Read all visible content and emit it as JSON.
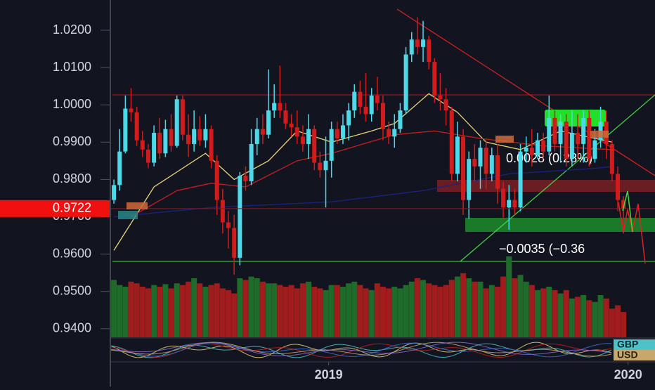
{
  "chart_data": {
    "type": "candlestick",
    "ylim": [
      0.9377,
      1.0281
    ],
    "yticks": [
      {
        "value": 1.02,
        "label": "1.0200"
      },
      {
        "value": 1.01,
        "label": "1.0100"
      },
      {
        "value": 1.0,
        "label": "1.0000"
      },
      {
        "value": 0.99,
        "label": "0.9900"
      },
      {
        "value": 0.98,
        "label": "0.9800"
      },
      {
        "value": 0.97,
        "label": "0.9700"
      },
      {
        "value": 0.96,
        "label": "0.9600"
      },
      {
        "value": 0.95,
        "label": "0.9500"
      },
      {
        "value": 0.94,
        "label": "0.9400"
      }
    ],
    "xlim": [
      -0.5,
      94.5
    ],
    "xticks": [
      {
        "value": 37.5,
        "label": "2019"
      },
      {
        "value": 89.8,
        "label": "2020"
      }
    ],
    "up_color": "#4dd9e8",
    "down_color": "#d01c1c",
    "volume_up_color": "#1e6b2a",
    "volume_down_color": "#a11d1d",
    "last_price": 0.9722,
    "last_price_color": "#f01010",
    "annotations": [
      "0.0028 (0.28%)",
      "−0.0035 (−0.36"
    ],
    "tags": [
      "GBP",
      "USD"
    ],
    "candles": [
      [
        0.9745,
        0.98,
        0.9735,
        0.9785
      ],
      [
        0.9785,
        0.9935,
        0.977,
        0.9875
      ],
      [
        0.9875,
        1.0025,
        0.987,
        0.999
      ],
      [
        0.999,
        1.0045,
        0.9955,
        0.998
      ],
      [
        0.998,
        0.9995,
        0.989,
        0.9905
      ],
      [
        0.9905,
        0.993,
        0.986,
        0.988
      ],
      [
        0.988,
        0.9895,
        0.983,
        0.9845
      ],
      [
        0.9845,
        0.9945,
        0.9835,
        0.9925
      ],
      [
        0.9925,
        0.9965,
        0.9855,
        0.987
      ],
      [
        0.987,
        0.996,
        0.986,
        0.9935
      ],
      [
        0.9935,
        0.9975,
        0.9875,
        0.989
      ],
      [
        0.989,
        1.0025,
        0.9885,
        1.0015
      ],
      [
        1.0015,
        1.0025,
        0.9905,
        0.992
      ],
      [
        0.992,
        0.9975,
        0.986,
        0.9895
      ],
      [
        0.9895,
        0.9985,
        0.9875,
        0.9935
      ],
      [
        0.9935,
        0.997,
        0.989,
        0.9905
      ],
      [
        0.9905,
        0.9975,
        0.9885,
        0.9935
      ],
      [
        0.9935,
        0.9945,
        0.983,
        0.985
      ],
      [
        0.985,
        0.9865,
        0.9705,
        0.9745
      ],
      [
        0.9745,
        0.9775,
        0.9655,
        0.9685
      ],
      [
        0.9685,
        0.9715,
        0.9615,
        0.967
      ],
      [
        0.967,
        0.9705,
        0.9545,
        0.959
      ],
      [
        0.959,
        0.982,
        0.957,
        0.981
      ],
      [
        0.981,
        0.9835,
        0.977,
        0.9795
      ],
      [
        0.9795,
        0.9935,
        0.9785,
        0.9895
      ],
      [
        0.9895,
        0.9965,
        0.9865,
        0.9935
      ],
      [
        0.9935,
        0.9975,
        0.9895,
        0.992
      ],
      [
        0.992,
        1.0095,
        0.991,
        0.9985
      ],
      [
        0.9985,
        1.0055,
        0.9965,
        1.0005
      ],
      [
        1.0005,
        1.0105,
        0.9965,
        0.9985
      ],
      [
        0.9985,
        1.0005,
        0.9935,
        0.995
      ],
      [
        0.995,
        0.9975,
        0.9915,
        0.994
      ],
      [
        0.994,
        0.9985,
        0.9895,
        0.9915
      ],
      [
        0.9915,
        0.9945,
        0.9875,
        0.9895
      ],
      [
        0.9895,
        0.9975,
        0.9855,
        0.9935
      ],
      [
        0.9935,
        0.9945,
        0.9825,
        0.9845
      ],
      [
        0.9845,
        0.9875,
        0.9805,
        0.9825
      ],
      [
        0.9825,
        0.9915,
        0.9725,
        0.985
      ],
      [
        0.985,
        0.9955,
        0.9805,
        0.9935
      ],
      [
        0.9935,
        0.9955,
        0.9895,
        0.991
      ],
      [
        0.991,
        0.9975,
        0.9895,
        0.9945
      ],
      [
        0.9945,
        1.0005,
        0.9905,
        0.9985
      ],
      [
        0.9985,
        1.0055,
        0.9965,
        1.0035
      ],
      [
        1.0035,
        1.0065,
        0.9975,
        0.9995
      ],
      [
        0.9995,
        1.0085,
        0.9955,
        0.9975
      ],
      [
        0.9975,
        1.0045,
        0.9955,
        1.0025
      ],
      [
        1.0025,
        1.0075,
        0.9985,
        1.0005
      ],
      [
        1.0005,
        1.0025,
        0.9905,
        0.9935
      ],
      [
        0.9935,
        0.9955,
        0.9895,
        0.9915
      ],
      [
        0.9915,
        0.9975,
        0.9885,
        0.9935
      ],
      [
        0.9935,
        1.0005,
        0.9925,
        0.9985
      ],
      [
        0.9985,
        1.0155,
        0.9975,
        1.0135
      ],
      [
        1.0135,
        1.0195,
        1.0115,
        1.0175
      ],
      [
        1.0175,
        1.0235,
        1.0135,
        1.0155
      ],
      [
        1.0155,
        1.0225,
        1.0115,
        1.0175
      ],
      [
        1.0175,
        1.0185,
        1.0095,
        1.0115
      ],
      [
        1.0115,
        1.0125,
        1.0005,
        1.0025
      ],
      [
        1.0025,
        1.0085,
        0.9985,
        1.0015
      ],
      [
        1.0015,
        1.0045,
        0.9945,
        0.9985
      ],
      [
        0.9985,
        0.9995,
        0.9795,
        0.9815
      ],
      [
        0.9815,
        0.9955,
        0.9795,
        0.9915
      ],
      [
        0.9915,
        0.9935,
        0.9705,
        0.9745
      ],
      [
        0.9745,
        0.9875,
        0.9695,
        0.9855
      ],
      [
        0.9855,
        0.9895,
        0.9795,
        0.9835
      ],
      [
        0.9835,
        0.9905,
        0.9775,
        0.9885
      ],
      [
        0.9885,
        0.9905,
        0.9775,
        0.9815
      ],
      [
        0.9815,
        0.9885,
        0.9795,
        0.9865
      ],
      [
        0.9865,
        0.9895,
        0.9735,
        0.9775
      ],
      [
        0.9775,
        0.9795,
        0.9695,
        0.9725
      ],
      [
        0.9725,
        0.9785,
        0.9665,
        0.9745
      ],
      [
        0.9745,
        0.9775,
        0.9705,
        0.9725
      ],
      [
        0.9725,
        0.9895,
        0.9715,
        0.9875
      ],
      [
        0.9875,
        0.9915,
        0.9845,
        0.9885
      ],
      [
        0.9885,
        0.9935,
        0.9835,
        0.9865
      ],
      [
        0.9865,
        0.9925,
        0.9855,
        0.9905
      ],
      [
        0.9905,
        0.9925,
        0.9855,
        0.9875
      ],
      [
        0.9875,
        1.0025,
        0.9865,
        0.9965
      ],
      [
        0.9965,
        0.9985,
        0.9875,
        0.9895
      ],
      [
        0.9895,
        0.9975,
        0.9845,
        0.9955
      ],
      [
        0.9955,
        0.9975,
        0.9835,
        0.9855
      ],
      [
        0.9855,
        0.9985,
        0.9835,
        0.9925
      ],
      [
        0.9925,
        0.9975,
        0.9855,
        0.9895
      ],
      [
        0.9895,
        0.9985,
        0.9845,
        0.9965
      ],
      [
        0.9965,
        0.9985,
        0.9835,
        0.9855
      ],
      [
        0.9855,
        0.9935,
        0.9845,
        0.9905
      ],
      [
        0.9905,
        0.9995,
        0.9885,
        0.9955
      ],
      [
        0.9955,
        0.9985,
        0.9855,
        0.9895
      ],
      [
        0.9895,
        0.9905,
        0.9795,
        0.9815
      ],
      [
        0.9815,
        0.9835,
        0.9715,
        0.9745
      ],
      [
        0.9745,
        0.9755,
        0.9655,
        0.9722
      ]
    ],
    "volume_lim": [
      0,
      100
    ],
    "volumes": [
      68,
      62,
      60,
      66,
      64,
      60,
      58,
      62,
      60,
      63,
      58,
      64,
      62,
      66,
      70,
      64,
      60,
      62,
      64,
      58,
      56,
      52,
      70,
      68,
      72,
      70,
      66,
      64,
      64,
      62,
      60,
      62,
      58,
      64,
      66,
      60,
      58,
      56,
      62,
      62,
      60,
      64,
      66,
      62,
      58,
      56,
      64,
      60,
      58,
      60,
      58,
      62,
      66,
      70,
      68,
      64,
      62,
      60,
      62,
      68,
      72,
      76,
      70,
      66,
      66,
      58,
      62,
      60,
      72,
      96,
      70,
      74,
      66,
      62,
      56,
      58,
      60,
      56,
      52,
      56,
      46,
      48,
      50,
      44,
      42,
      50,
      46,
      34,
      38,
      30
    ],
    "ma_lines": [
      {
        "color": "#e8d27a",
        "x": [
          0,
          7,
          16,
          21,
          27,
          32,
          38,
          45,
          49,
          55,
          60,
          65,
          71,
          78,
          87
        ],
        "values": [
          0.961,
          0.978,
          0.987,
          0.98,
          0.985,
          0.993,
          0.99,
          0.993,
          0.995,
          1.003,
          0.998,
          0.99,
          0.988,
          0.993,
          0.99
        ]
      },
      {
        "color": "#c81e1e",
        "x": [
          3,
          11,
          17,
          23,
          32,
          38,
          49,
          56,
          64,
          75,
          87
        ],
        "values": [
          0.97,
          0.977,
          0.979,
          0.978,
          0.985,
          0.987,
          0.992,
          0.993,
          0.991,
          0.989,
          0.988
        ]
      },
      {
        "color": "#1a237e",
        "x": [
          0,
          17,
          38,
          54,
          69,
          84,
          87
        ],
        "values": [
          0.97,
          0.9725,
          0.974,
          0.977,
          0.9815,
          0.983,
          0.9835
        ]
      }
    ]
  }
}
